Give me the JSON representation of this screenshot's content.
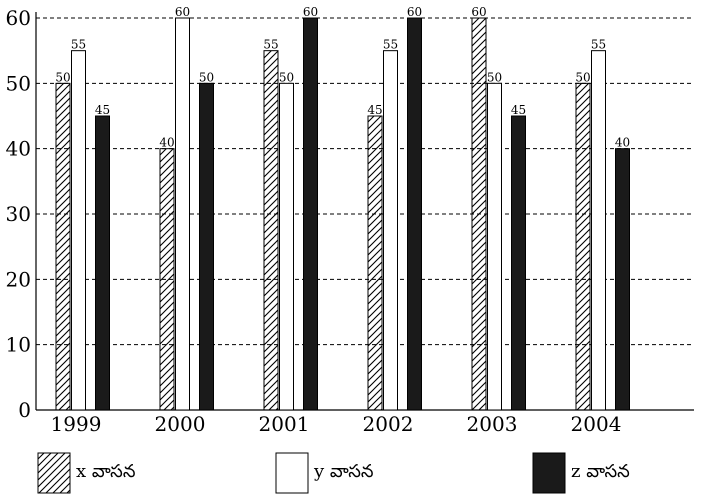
{
  "chart_data": {
    "type": "bar",
    "categories": [
      "1999",
      "2000",
      "2001",
      "2002",
      "2003",
      "2004"
    ],
    "series": [
      {
        "name": "x వాసన",
        "values": [
          50,
          40,
          55,
          45,
          60,
          50
        ],
        "fill": "hatched"
      },
      {
        "name": "y వాసన",
        "values": [
          55,
          60,
          50,
          55,
          50,
          55
        ],
        "fill": "white"
      },
      {
        "name": "z వాసన",
        "values": [
          45,
          50,
          60,
          60,
          45,
          40
        ],
        "fill": "black"
      }
    ],
    "yticks": [
      0,
      10,
      20,
      30,
      40,
      50,
      60
    ],
    "ylim": [
      0,
      60
    ],
    "grid": "dashed-horizontal",
    "legend_position": "bottom"
  }
}
